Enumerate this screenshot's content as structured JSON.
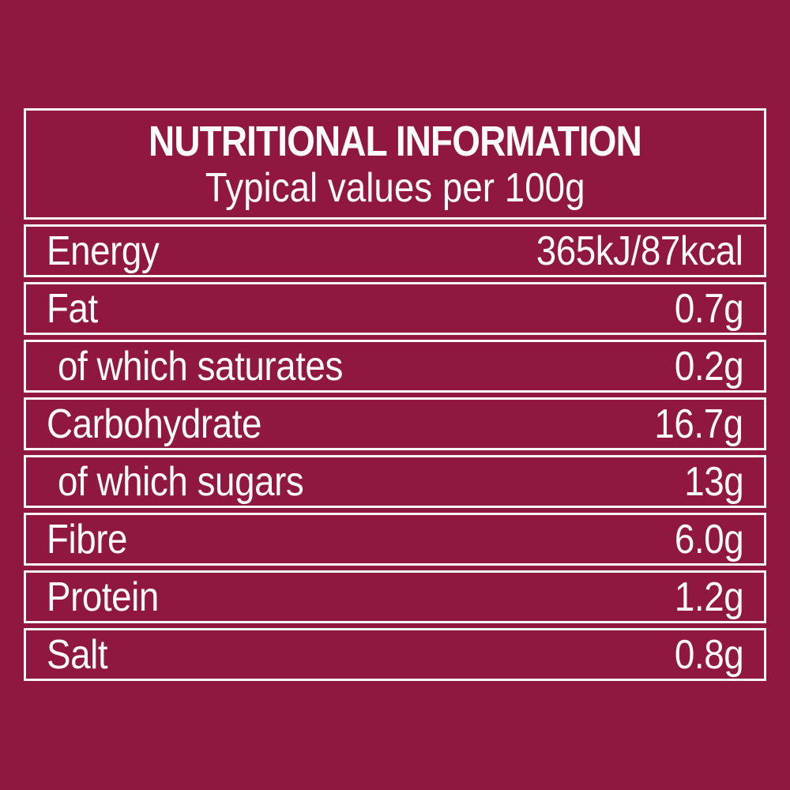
{
  "colors": {
    "background": "#8F1740",
    "border": "#F9F6F5",
    "text": "#FCFAFA"
  },
  "header": {
    "title": "NUTRITIONAL INFORMATION",
    "subtitle": "Typical values per 100g"
  },
  "rows": [
    {
      "label": "Energy",
      "value": "365kJ/87kcal",
      "indent": false
    },
    {
      "label": "Fat",
      "value": "0.7g",
      "indent": false
    },
    {
      "label": "of which saturates",
      "value": "0.2g",
      "indent": true
    },
    {
      "label": "Carbohydrate",
      "value": "16.7g",
      "indent": false
    },
    {
      "label": "of which sugars",
      "value": "13g",
      "indent": true
    },
    {
      "label": "Fibre",
      "value": "6.0g",
      "indent": false
    },
    {
      "label": "Protein",
      "value": "1.2g",
      "indent": false
    },
    {
      "label": "Salt",
      "value": "0.8g",
      "indent": false
    }
  ]
}
